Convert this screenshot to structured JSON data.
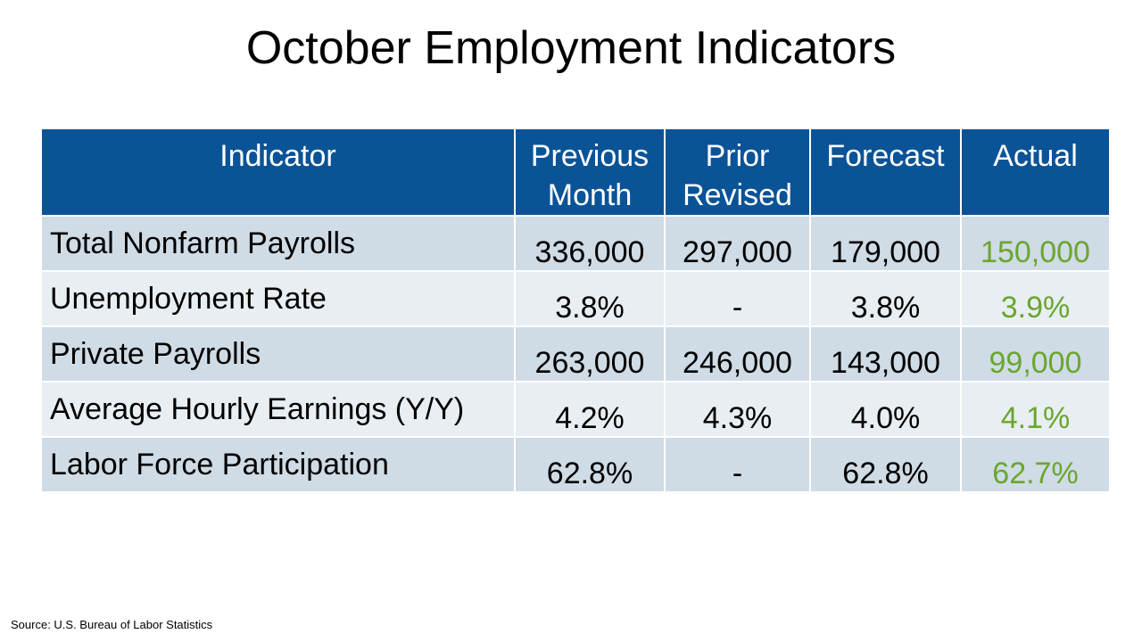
{
  "header": {
    "title": "October Employment Indicators"
  },
  "table": {
    "columns": [
      "Indicator",
      "Previous Month",
      "Prior Revised",
      "Forecast",
      "Actual"
    ],
    "rows": [
      [
        "Total Nonfarm Payrolls",
        "336,000",
        "297,000",
        "179,000",
        "150,000"
      ],
      [
        "Unemployment Rate",
        "3.8%",
        "-",
        "3.8%",
        "3.9%"
      ],
      [
        "Private Payrolls",
        "263,000",
        "246,000",
        "143,000",
        "99,000"
      ],
      [
        "Average Hourly Earnings (Y/Y)",
        "4.2%",
        "4.3%",
        "4.0%",
        "4.1%"
      ],
      [
        "Labor Force Participation",
        "62.8%",
        "-",
        "62.8%",
        "62.7%"
      ]
    ]
  },
  "footer": {
    "source": "Source: U.S. Bureau of Labor Statistics"
  }
}
